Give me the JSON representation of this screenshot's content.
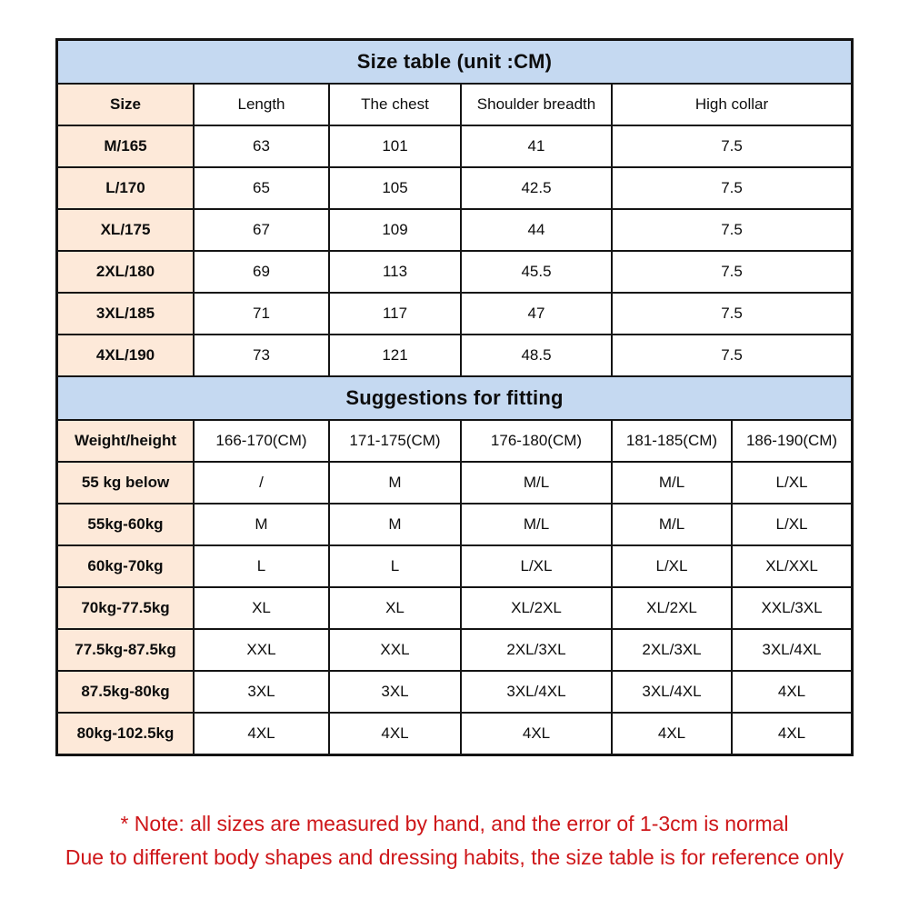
{
  "size_table": {
    "title": "Size table (unit :CM)",
    "columns": [
      "Size",
      "Length",
      "The chest",
      "Shoulder breadth",
      "High collar"
    ],
    "rows": [
      {
        "label": "M/165",
        "values": [
          "63",
          "101",
          "41",
          "7.5"
        ]
      },
      {
        "label": "L/170",
        "values": [
          "65",
          "105",
          "42.5",
          "7.5"
        ]
      },
      {
        "label": "XL/175",
        "values": [
          "67",
          "109",
          "44",
          "7.5"
        ]
      },
      {
        "label": "2XL/180",
        "values": [
          "69",
          "113",
          "45.5",
          "7.5"
        ]
      },
      {
        "label": "3XL/185",
        "values": [
          "71",
          "117",
          "47",
          "7.5"
        ]
      },
      {
        "label": "4XL/190",
        "values": [
          "73",
          "121",
          "48.5",
          "7.5"
        ]
      }
    ]
  },
  "fitting_table": {
    "title": "Suggestions for fitting",
    "columns": [
      "Weight/height",
      "166-170(CM)",
      "171-175(CM)",
      "176-180(CM)",
      "181-185(CM)",
      "186-190(CM)"
    ],
    "rows": [
      {
        "label": "55 kg below",
        "values": [
          "/",
          "M",
          "M/L",
          "M/L",
          "L/XL"
        ]
      },
      {
        "label": "55kg-60kg",
        "values": [
          "M",
          "M",
          "M/L",
          "M/L",
          "L/XL"
        ]
      },
      {
        "label": "60kg-70kg",
        "values": [
          "L",
          "L",
          "L/XL",
          "L/XL",
          "XL/XXL"
        ]
      },
      {
        "label": "70kg-77.5kg",
        "values": [
          "XL",
          "XL",
          "XL/2XL",
          "XL/2XL",
          "XXL/3XL"
        ]
      },
      {
        "label": "77.5kg-87.5kg",
        "values": [
          "XXL",
          "XXL",
          "2XL/3XL",
          "2XL/3XL",
          "3XL/4XL"
        ]
      },
      {
        "label": "87.5kg-80kg",
        "values": [
          "3XL",
          "3XL",
          "3XL/4XL",
          "3XL/4XL",
          "4XL"
        ]
      },
      {
        "label": "80kg-102.5kg",
        "values": [
          "4XL",
          "4XL",
          "4XL",
          "4XL",
          "4XL"
        ]
      }
    ]
  },
  "notes": {
    "line1": "* Note: all sizes are measured by hand, and the error of 1-3cm is normal",
    "line2": "Due to different body shapes and dressing habits, the size table is for reference only"
  },
  "colors": {
    "title_band_blue": "#c5d9f1",
    "row_header_peach": "#fde9d9",
    "note_red": "#ce1619",
    "grid_border": "#141414"
  }
}
